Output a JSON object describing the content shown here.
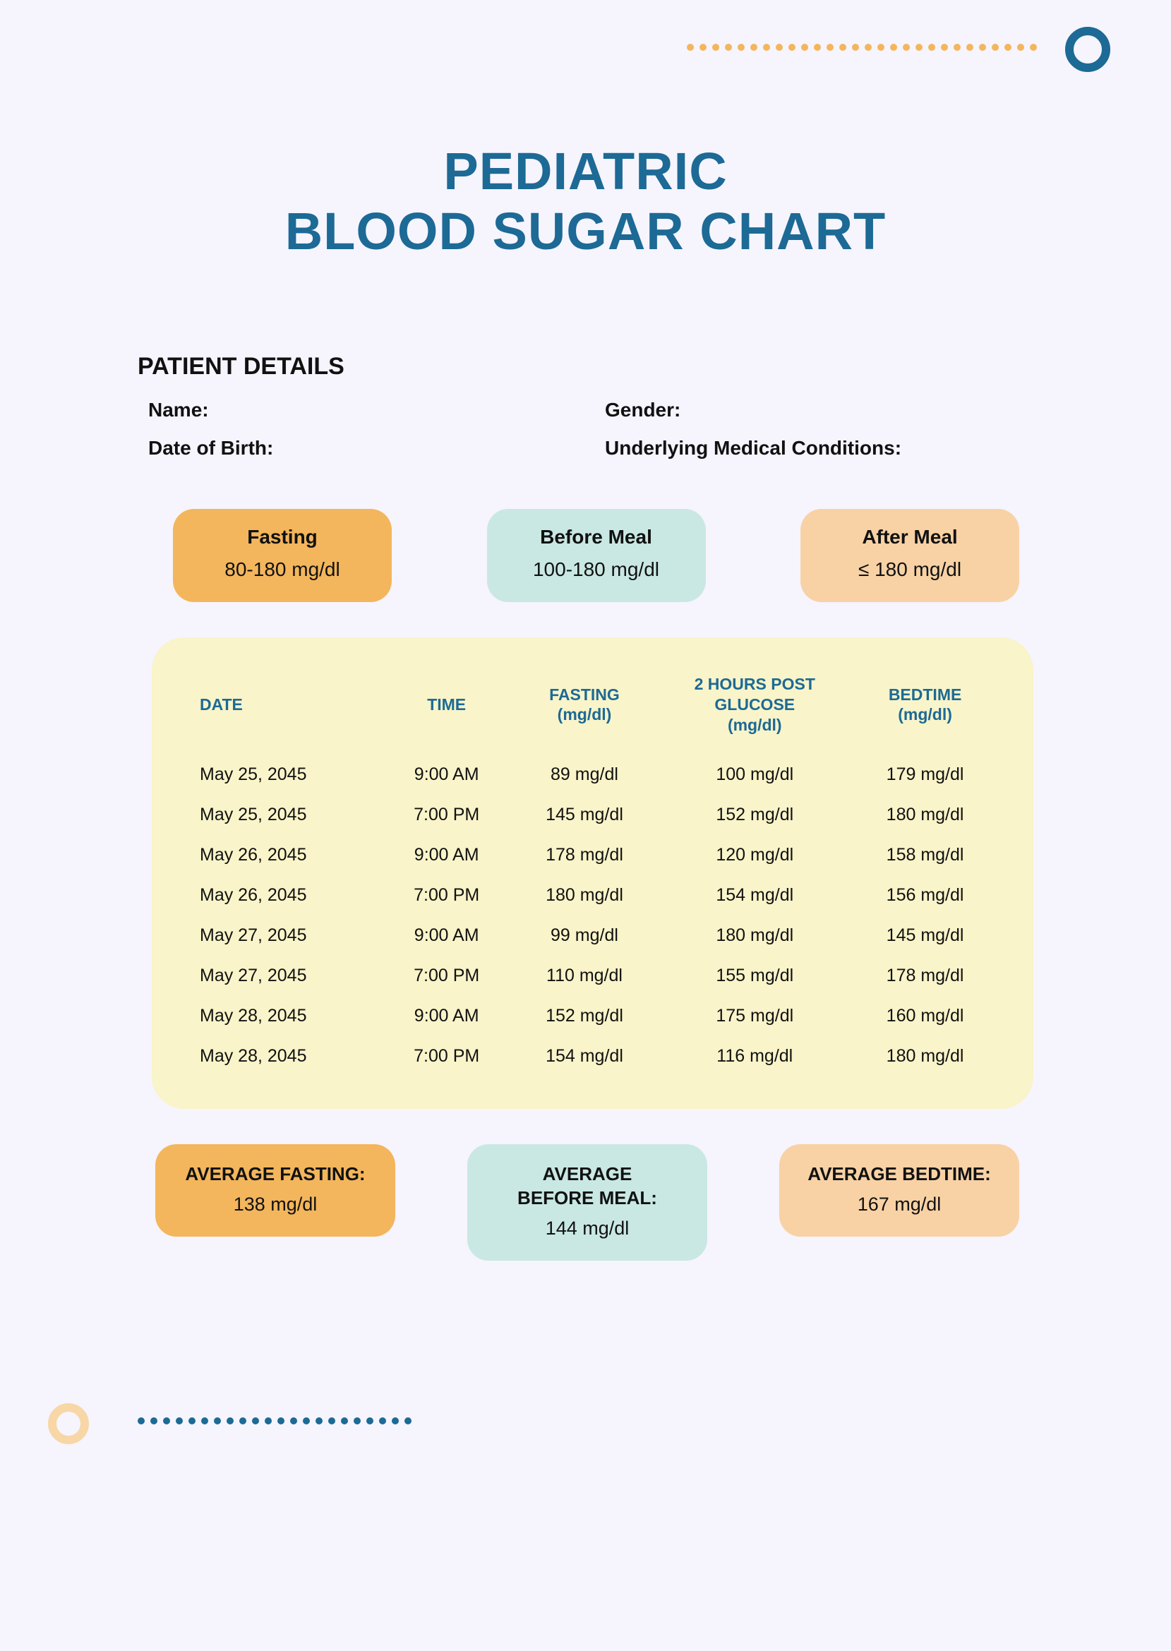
{
  "title_line1": "PEDIATRIC",
  "title_line2": "BLOOD SUGAR CHART",
  "colors": {
    "accent_blue": "#1c6a95",
    "bg": "#f6f4fd",
    "card_orange": "#f3b65c",
    "card_teal": "#c9e8e3",
    "card_peach": "#f8d2a5",
    "table_bg": "#f9f4c9",
    "dot_orange": "#f3b65c",
    "ring_peach": "#f8d7a6"
  },
  "patient": {
    "section_label": "PATIENT DETAILS",
    "fields": {
      "name_label": "Name:",
      "gender_label": "Gender:",
      "dob_label": "Date of Birth:",
      "conditions_label": "Underlying Medical Conditions:"
    }
  },
  "ranges": [
    {
      "label": "Fasting",
      "value": "80-180 mg/dl",
      "bg": "#f3b65c"
    },
    {
      "label": "Before Meal",
      "value": "100-180 mg/dl",
      "bg": "#c9e8e3"
    },
    {
      "label": "After Meal",
      "value": "≤ 180 mg/dl",
      "bg": "#f8d2a5"
    }
  ],
  "table": {
    "columns": [
      "DATE",
      "TIME",
      "FASTING (mg/dl)",
      "2 HOURS POST GLUCOSE (mg/dl)",
      "BEDTIME (mg/dl)"
    ],
    "rows": [
      [
        "May 25, 2045",
        "9:00 AM",
        "89 mg/dl",
        "100 mg/dl",
        "179 mg/dl"
      ],
      [
        "May 25, 2045",
        "7:00 PM",
        "145 mg/dl",
        "152 mg/dl",
        "180 mg/dl"
      ],
      [
        "May 26, 2045",
        "9:00 AM",
        "178 mg/dl",
        "120 mg/dl",
        "158 mg/dl"
      ],
      [
        "May 26, 2045",
        "7:00 PM",
        "180 mg/dl",
        "154 mg/dl",
        "156 mg/dl"
      ],
      [
        "May 27, 2045",
        "9:00 AM",
        "99 mg/dl",
        "180 mg/dl",
        "145 mg/dl"
      ],
      [
        "May 27, 2045",
        "7:00 PM",
        "110 mg/dl",
        "155 mg/dl",
        "178 mg/dl"
      ],
      [
        "May 28, 2045",
        "9:00 AM",
        "152 mg/dl",
        "175 mg/dl",
        "160 mg/dl"
      ],
      [
        "May 28, 2045",
        "7:00 PM",
        "154 mg/dl",
        "116 mg/dl",
        "180 mg/dl"
      ]
    ]
  },
  "averages": [
    {
      "label": "AVERAGE FASTING:",
      "value": "138 mg/dl",
      "bg": "#f3b65c"
    },
    {
      "label": "AVERAGE BEFORE MEAL:",
      "value": "144 mg/dl",
      "bg": "#c9e8e3"
    },
    {
      "label": "AVERAGE BEDTIME:",
      "value": "167 mg/dl",
      "bg": "#f8d2a5"
    }
  ],
  "decor": {
    "top_dot_count": 28,
    "bottom_dot_count": 22
  }
}
